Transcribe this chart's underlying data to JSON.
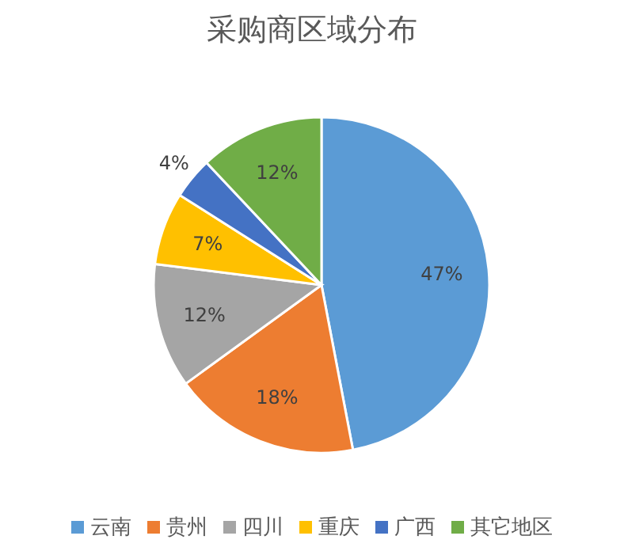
{
  "chart_data": {
    "type": "pie",
    "title": "采购商区域分布",
    "categories": [
      "云南",
      "贵州",
      "四川",
      "重庆",
      "广西",
      "其它地区"
    ],
    "values": [
      47,
      18,
      12,
      7,
      4,
      12
    ],
    "colors": [
      "#5b9bd5",
      "#ed7d31",
      "#a5a5a5",
      "#ffc000",
      "#4472c4",
      "#70ad47"
    ],
    "value_labels": [
      "47%",
      "18%",
      "12%",
      "7%",
      "4%",
      "12%"
    ],
    "legend": "bottom"
  }
}
